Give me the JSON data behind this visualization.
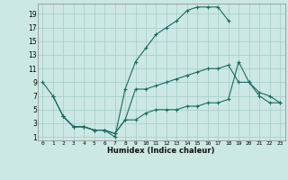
{
  "xlabel": "Humidex (Indice chaleur)",
  "bg_color": "#cce8e4",
  "grid_color": "#aacfcb",
  "line_color": "#1a6b60",
  "xlim": [
    -0.5,
    23.5
  ],
  "ylim": [
    0.5,
    20.5
  ],
  "xticks": [
    0,
    1,
    2,
    3,
    4,
    5,
    6,
    7,
    8,
    9,
    10,
    11,
    12,
    13,
    14,
    15,
    16,
    17,
    18,
    19,
    20,
    21,
    22,
    23
  ],
  "yticks": [
    1,
    3,
    5,
    7,
    9,
    11,
    13,
    15,
    17,
    19
  ],
  "line1_x": [
    0,
    1,
    2,
    3,
    4,
    5,
    6,
    7,
    8,
    9,
    10,
    11,
    12,
    13,
    14,
    15,
    16,
    17,
    18
  ],
  "line1_y": [
    9,
    7,
    4,
    2.5,
    2.5,
    2,
    2,
    1,
    8,
    12,
    14,
    16,
    17,
    18,
    19.5,
    20,
    20,
    20,
    18
  ],
  "line2_x": [
    2,
    3,
    4,
    5,
    6,
    7,
    8,
    9,
    10,
    11,
    12,
    13,
    14,
    15,
    16,
    17,
    18,
    19,
    20,
    21,
    22,
    23
  ],
  "line2_y": [
    4,
    2.5,
    2.5,
    2,
    2,
    1.5,
    3.5,
    3.5,
    4.5,
    5,
    5,
    5,
    5.5,
    5.5,
    6,
    6,
    6.5,
    12,
    9,
    7,
    6,
    6
  ],
  "line3_x": [
    1,
    2,
    3,
    4,
    5,
    6,
    7,
    8,
    9,
    10,
    11,
    12,
    13,
    14,
    15,
    16,
    17,
    18,
    19,
    20,
    21,
    22,
    23
  ],
  "line3_y": [
    7,
    4,
    2.5,
    2.5,
    2,
    2,
    1.5,
    3.5,
    8,
    8,
    8.5,
    9,
    9.5,
    10,
    10.5,
    11,
    11,
    11.5,
    9,
    9,
    7.5,
    7,
    6
  ]
}
